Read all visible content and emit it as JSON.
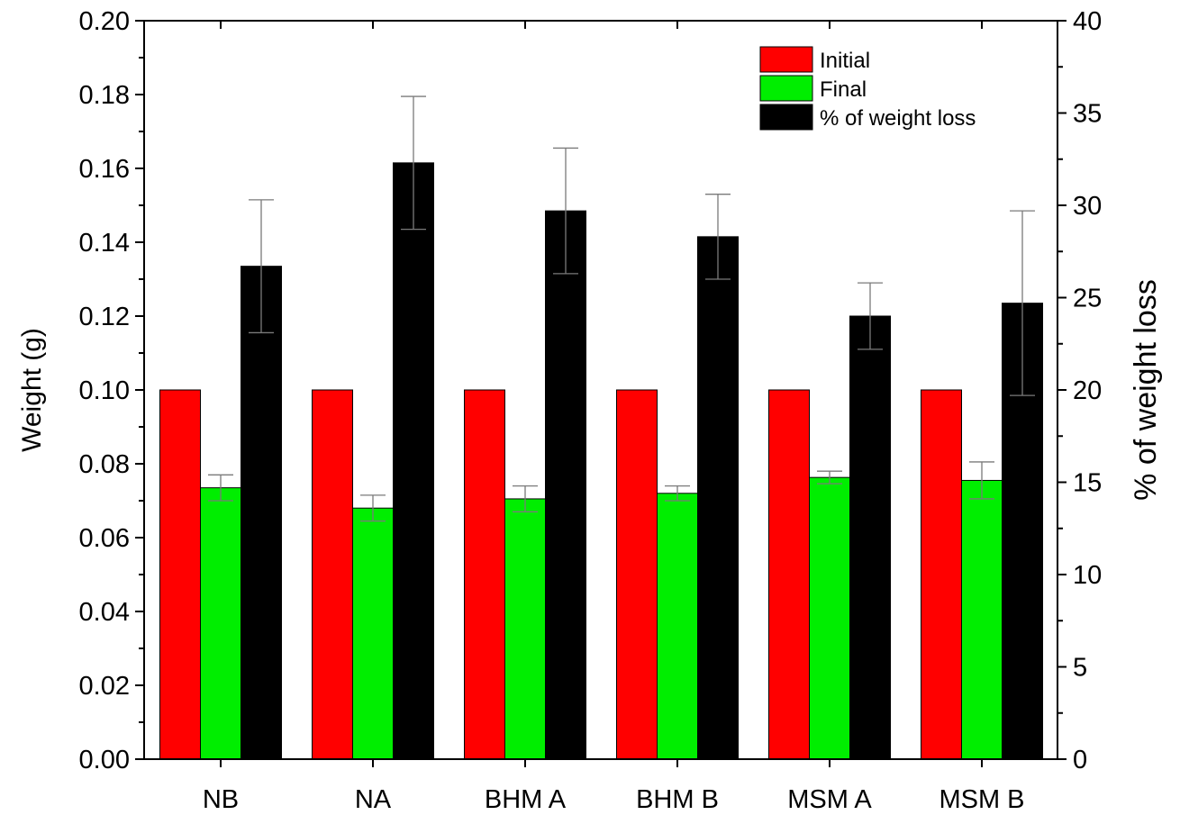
{
  "chart_data": {
    "type": "bar",
    "categories": [
      "NB",
      "NA",
      "BHM A",
      "BHM B",
      "MSM A",
      "MSM B"
    ],
    "series": [
      {
        "name": "Initial",
        "axis": "left",
        "color": "#ff0000",
        "values": [
          0.1,
          0.1,
          0.1,
          0.1,
          0.1,
          0.1
        ],
        "errors": [
          null,
          null,
          null,
          null,
          null,
          null
        ]
      },
      {
        "name": "Final",
        "axis": "left",
        "color": "#00ee00",
        "values": [
          0.0735,
          0.068,
          0.0705,
          0.072,
          0.0763,
          0.0755
        ],
        "errors": [
          0.0035,
          0.0035,
          0.0035,
          0.002,
          0.0017,
          0.005
        ]
      },
      {
        "name": "% of weight loss",
        "axis": "right",
        "color": "#000000",
        "values": [
          26.7,
          32.3,
          29.7,
          28.3,
          24.0,
          24.7
        ],
        "errors": [
          3.6,
          3.6,
          3.4,
          2.3,
          1.8,
          5.0
        ]
      }
    ],
    "ylabel": "Weight (g)",
    "ylim": [
      0,
      0.2
    ],
    "yticks": [
      "0.00",
      "0.02",
      "0.04",
      "0.06",
      "0.08",
      "0.10",
      "0.12",
      "0.14",
      "0.16",
      "0.18",
      "0.20"
    ],
    "y2label": "% of weight loss",
    "y2lim": [
      0,
      40
    ],
    "y2ticks": [
      "0",
      "5",
      "10",
      "15",
      "20",
      "25",
      "30",
      "35",
      "40"
    ],
    "xlabel": "",
    "title": "",
    "grid": false,
    "legend_position": "top-right"
  }
}
